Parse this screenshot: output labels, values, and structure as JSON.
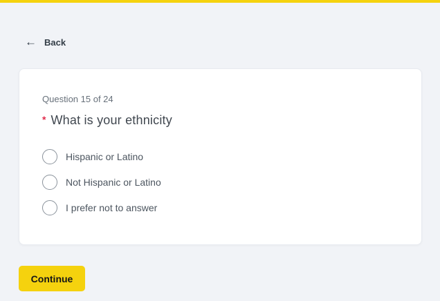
{
  "page": {
    "background_color": "#f1f3f7",
    "accent_color": "#f5d20e"
  },
  "back": {
    "icon": "←",
    "label": "Back"
  },
  "card": {
    "progress": "Question 15 of 24",
    "required_marker": "*",
    "question": "What is your ethnicity",
    "options": [
      {
        "label": "Hispanic or Latino",
        "selected": false
      },
      {
        "label": "Not Hispanic or Latino",
        "selected": false
      },
      {
        "label": "I prefer not to answer",
        "selected": false
      }
    ]
  },
  "footer": {
    "continue_label": "Continue"
  }
}
